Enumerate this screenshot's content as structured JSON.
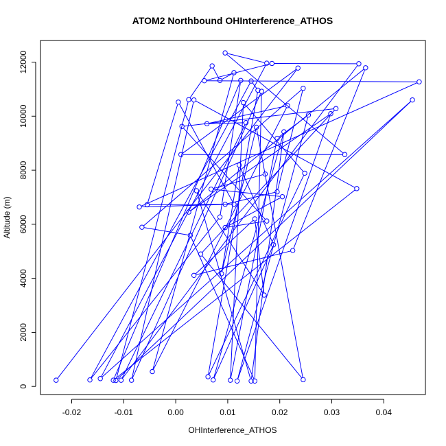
{
  "chart_data": {
    "type": "line",
    "title": "ATOM2 Northbound OHInterference_ATHOS",
    "xlabel": "OHInterference_ATHOS",
    "ylabel": "Altitude (m)",
    "xlim": [
      -0.026,
      0.048
    ],
    "ylim": [
      -300,
      12800
    ],
    "x_ticks": [
      -0.02,
      -0.01,
      0.0,
      0.01,
      0.02,
      0.03,
      0.04
    ],
    "x_tick_labels": [
      "-0.02",
      "-0.01",
      "0.00",
      "0.01",
      "0.02",
      "0.03",
      "0.04"
    ],
    "y_ticks": [
      0,
      2000,
      4000,
      6000,
      8000,
      10000,
      12000
    ],
    "y_tick_labels": [
      "0",
      "2000",
      "4000",
      "6000",
      "8000",
      "10000",
      "12000"
    ],
    "grid": false,
    "legend": "none",
    "colors": {
      "series": "#0000ff",
      "axis": "#000000"
    },
    "series": [
      {
        "marker": "open-circle",
        "line": true,
        "points": [
          [
            -0.023,
            230
          ],
          [
            0.0235,
            11780
          ],
          [
            0.001,
            8580
          ],
          [
            0.0325,
            8580
          ],
          [
            0.0095,
            12340
          ],
          [
            0.0175,
            11960
          ],
          [
            -0.0145,
            290
          ],
          [
            0.0455,
            10600
          ],
          [
            -0.0115,
            220
          ],
          [
            0.0025,
            10610
          ],
          [
            0.007,
            11860
          ],
          [
            0.0085,
            11320
          ],
          [
            0.0112,
            11610
          ],
          [
            -0.0045,
            550
          ],
          [
            0.0215,
            10390
          ],
          [
            0.006,
            9720
          ],
          [
            0.0135,
            9760
          ],
          [
            -0.0105,
            230
          ],
          [
            0.0352,
            11940
          ],
          [
            0.0185,
            11950
          ],
          [
            0.0055,
            11310
          ],
          [
            0.0468,
            11270
          ],
          [
            -0.007,
            6640
          ],
          [
            0.0112,
            6740
          ],
          [
            0.0005,
            10520
          ],
          [
            -0.0055,
            6720
          ],
          [
            0.0095,
            6740
          ],
          [
            0.0195,
            7200
          ],
          [
            0.0245,
            11030
          ],
          [
            -0.0065,
            5890
          ],
          [
            0.0028,
            5590
          ],
          [
            0.0152,
            200
          ],
          [
            0.0165,
            10920
          ],
          [
            -0.0085,
            230
          ],
          [
            0.0035,
            10600
          ],
          [
            0.0348,
            7320
          ],
          [
            -0.012,
            230
          ],
          [
            0.0125,
            11320
          ],
          [
            0.0085,
            6270
          ],
          [
            -0.0165,
            240
          ],
          [
            0.0145,
            11300
          ],
          [
            0.0158,
            10960
          ],
          [
            0.0062,
            360
          ],
          [
            0.0248,
            7890
          ],
          [
            0.013,
            10500
          ],
          [
            0.0105,
            230
          ],
          [
            0.0195,
            9180
          ],
          [
            0.0255,
            10040
          ],
          [
            0.0118,
            200
          ],
          [
            0.0298,
            10090
          ],
          [
            0.0025,
            6450
          ],
          [
            0.0365,
            11790
          ],
          [
            0.0225,
            5030
          ],
          [
            0.0035,
            4110
          ],
          [
            0.0152,
            6200
          ],
          [
            0.017,
            3380
          ],
          [
            0.004,
            7240
          ],
          [
            0.0145,
            200
          ],
          [
            0.0208,
            9420
          ],
          [
            0.0072,
            240
          ],
          [
            0.0188,
            5240
          ],
          [
            0.0122,
            8190
          ],
          [
            0.0088,
            4170
          ],
          [
            0.0155,
            9590
          ],
          [
            0.0245,
            250
          ],
          [
            0.0048,
            4900
          ],
          [
            0.0308,
            10280
          ],
          [
            0.0012,
            9620
          ],
          [
            0.0175,
            6120
          ],
          [
            0.0095,
            5880
          ],
          [
            0.0205,
            7020
          ],
          [
            0.0068,
            7300
          ],
          [
            0.0172,
            7860
          ]
        ]
      }
    ]
  }
}
